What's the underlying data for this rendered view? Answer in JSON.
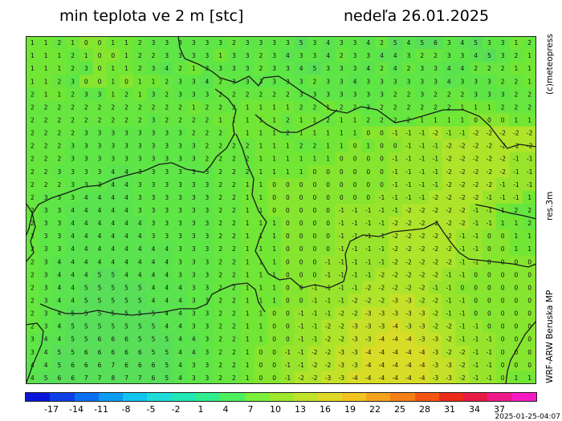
{
  "title": {
    "variable": "min teplota ve 2 m [stc]",
    "date": "nedeľa 26.01.2025"
  },
  "side_labels": {
    "brand": "(c)meteopress",
    "resolution": "res.3m",
    "model": "WRF-ARW Beruska MP"
  },
  "timestamp": "2025-01-25-04:07",
  "map": {
    "grid_cols": 38,
    "grid_rows": 27,
    "cell_values": [
      [
        1,
        1,
        2,
        1,
        0,
        0,
        1,
        1,
        2,
        3,
        3,
        3,
        3,
        3,
        3,
        2,
        3,
        3,
        3,
        3,
        5,
        3,
        4,
        3,
        3,
        4,
        2,
        5,
        4,
        5,
        6,
        3,
        4,
        5,
        3,
        3,
        1,
        2
      ],
      [
        1,
        1,
        1,
        2,
        1,
        0,
        0,
        1,
        2,
        2,
        3,
        3,
        3,
        3,
        1,
        3,
        3,
        2,
        3,
        4,
        3,
        3,
        4,
        2,
        3,
        3,
        4,
        4,
        3,
        2,
        2,
        3,
        3,
        4,
        5,
        3,
        2,
        1
      ],
      [
        1,
        1,
        1,
        2,
        3,
        0,
        1,
        1,
        2,
        3,
        4,
        2,
        1,
        3,
        3,
        3,
        3,
        2,
        3,
        3,
        4,
        5,
        3,
        3,
        3,
        4,
        2,
        4,
        2,
        3,
        3,
        4,
        4,
        2,
        2,
        2,
        1,
        1
      ],
      [
        1,
        1,
        2,
        3,
        0,
        0,
        1,
        0,
        1,
        1,
        2,
        3,
        3,
        4,
        2,
        3,
        3,
        3,
        3,
        3,
        3,
        2,
        3,
        3,
        4,
        3,
        3,
        3,
        3,
        3,
        3,
        4,
        3,
        3,
        3,
        2,
        2,
        1
      ],
      [
        2,
        1,
        1,
        2,
        3,
        3,
        1,
        2,
        1,
        3,
        2,
        3,
        3,
        3,
        2,
        2,
        2,
        2,
        2,
        2,
        3,
        3,
        3,
        3,
        3,
        3,
        3,
        2,
        2,
        3,
        2,
        2,
        2,
        3,
        3,
        3,
        2,
        2
      ],
      [
        2,
        2,
        2,
        2,
        2,
        2,
        2,
        2,
        2,
        2,
        2,
        2,
        1,
        2,
        2,
        2,
        1,
        1,
        1,
        1,
        2,
        2,
        1,
        2,
        2,
        3,
        2,
        2,
        2,
        2,
        2,
        2,
        1,
        1,
        1,
        2,
        2,
        2
      ],
      [
        2,
        2,
        2,
        2,
        2,
        2,
        2,
        2,
        2,
        3,
        2,
        2,
        2,
        2,
        1,
        1,
        1,
        1,
        1,
        2,
        1,
        1,
        2,
        1,
        1,
        2,
        2,
        2,
        2,
        1,
        1,
        1,
        1,
        0,
        0,
        0,
        1,
        1
      ],
      [
        2,
        2,
        2,
        2,
        3,
        3,
        3,
        3,
        3,
        3,
        3,
        3,
        2,
        2,
        2,
        1,
        1,
        1,
        1,
        2,
        1,
        1,
        1,
        1,
        1,
        0,
        0,
        -1,
        -1,
        -1,
        -2,
        -1,
        -1,
        -2,
        -2,
        -2,
        -2,
        -2
      ],
      [
        2,
        2,
        2,
        3,
        3,
        3,
        3,
        3,
        3,
        3,
        3,
        3,
        3,
        2,
        2,
        2,
        2,
        1,
        1,
        1,
        2,
        2,
        1,
        1,
        0,
        1,
        0,
        0,
        -1,
        -1,
        -1,
        -2,
        -2,
        -2,
        -2,
        -2,
        -2,
        -2
      ],
      [
        2,
        2,
        2,
        3,
        3,
        3,
        3,
        3,
        3,
        3,
        3,
        3,
        3,
        2,
        2,
        2,
        2,
        1,
        1,
        1,
        1,
        1,
        1,
        0,
        0,
        0,
        0,
        -1,
        -1,
        -1,
        -1,
        -2,
        -2,
        -2,
        -2,
        -2,
        -1,
        -1
      ],
      [
        2,
        2,
        3,
        3,
        3,
        3,
        4,
        4,
        3,
        3,
        3,
        3,
        3,
        3,
        2,
        2,
        2,
        1,
        1,
        1,
        1,
        0,
        0,
        0,
        0,
        0,
        0,
        -1,
        -1,
        -1,
        -1,
        -2,
        -2,
        -2,
        -2,
        -2,
        -1,
        -1
      ],
      [
        2,
        2,
        2,
        3,
        3,
        3,
        4,
        4,
        3,
        3,
        3,
        3,
        3,
        3,
        2,
        2,
        1,
        1,
        0,
        0,
        0,
        0,
        0,
        0,
        0,
        0,
        0,
        -1,
        -1,
        -1,
        -1,
        -2,
        -2,
        -2,
        -2,
        -1,
        -1,
        -1
      ],
      [
        2,
        3,
        3,
        3,
        4,
        4,
        4,
        4,
        3,
        3,
        3,
        3,
        3,
        3,
        2,
        2,
        1,
        1,
        0,
        0,
        0,
        0,
        0,
        0,
        0,
        0,
        -1,
        -1,
        -1,
        -1,
        -2,
        -2,
        -2,
        -2,
        -1,
        -1,
        -1,
        1
      ],
      [
        2,
        3,
        3,
        4,
        4,
        4,
        4,
        4,
        3,
        3,
        3,
        3,
        3,
        3,
        2,
        2,
        1,
        1,
        0,
        0,
        0,
        0,
        0,
        -1,
        -1,
        -1,
        -1,
        -1,
        -2,
        -2,
        -2,
        -2,
        -2,
        -1,
        -1,
        1,
        2,
        2
      ],
      [
        2,
        3,
        3,
        4,
        4,
        4,
        4,
        4,
        4,
        3,
        3,
        3,
        3,
        3,
        2,
        2,
        1,
        1,
        1,
        0,
        0,
        0,
        0,
        -1,
        -1,
        -1,
        -1,
        -2,
        -2,
        -2,
        -2,
        -2,
        -2,
        -1,
        -1,
        1,
        1,
        2
      ],
      [
        2,
        3,
        3,
        4,
        4,
        4,
        4,
        4,
        4,
        3,
        3,
        3,
        3,
        3,
        2,
        2,
        1,
        1,
        1,
        0,
        0,
        0,
        0,
        -1,
        -1,
        -1,
        -1,
        -2,
        -2,
        -2,
        -2,
        -2,
        -1,
        -1,
        0,
        0,
        1,
        1
      ],
      [
        2,
        3,
        3,
        4,
        4,
        4,
        4,
        4,
        4,
        4,
        4,
        3,
        3,
        3,
        2,
        2,
        1,
        1,
        1,
        0,
        0,
        0,
        0,
        -1,
        -1,
        -1,
        -1,
        -2,
        -2,
        -2,
        -2,
        -2,
        -1,
        -1,
        0,
        0,
        1,
        1
      ],
      [
        2,
        3,
        4,
        4,
        4,
        4,
        4,
        4,
        4,
        4,
        4,
        3,
        3,
        3,
        2,
        2,
        1,
        1,
        1,
        0,
        0,
        0,
        -1,
        -1,
        -1,
        -1,
        -1,
        -2,
        -2,
        -2,
        -2,
        -2,
        -1,
        -1,
        0,
        0,
        0,
        0
      ],
      [
        2,
        3,
        4,
        4,
        4,
        5,
        5,
        4,
        4,
        4,
        4,
        3,
        3,
        3,
        2,
        2,
        1,
        1,
        1,
        0,
        0,
        0,
        -1,
        -1,
        -1,
        -1,
        -2,
        -2,
        -2,
        -2,
        -2,
        -1,
        -1,
        0,
        0,
        0,
        0,
        0
      ],
      [
        2,
        3,
        4,
        4,
        5,
        5,
        5,
        5,
        5,
        4,
        4,
        4,
        3,
        3,
        2,
        2,
        1,
        1,
        1,
        0,
        0,
        -1,
        -1,
        -1,
        -1,
        -2,
        -2,
        -2,
        -2,
        -2,
        -1,
        -1,
        0,
        0,
        0,
        0,
        0,
        0
      ],
      [
        2,
        3,
        4,
        4,
        5,
        5,
        5,
        5,
        5,
        4,
        4,
        4,
        3,
        3,
        2,
        2,
        1,
        1,
        1,
        0,
        0,
        -1,
        -1,
        -1,
        -2,
        -2,
        -2,
        -3,
        -3,
        -2,
        -2,
        -1,
        -1,
        0,
        0,
        0,
        0,
        0
      ],
      [
        2,
        3,
        4,
        5,
        5,
        5,
        5,
        5,
        5,
        5,
        4,
        4,
        3,
        3,
        2,
        2,
        1,
        1,
        0,
        0,
        -1,
        -1,
        -1,
        -2,
        -2,
        -3,
        -3,
        -3,
        -3,
        -3,
        -2,
        -1,
        -1,
        0,
        0,
        0,
        0,
        0
      ],
      [
        2,
        3,
        4,
        5,
        5,
        5,
        5,
        5,
        5,
        5,
        4,
        4,
        3,
        3,
        2,
        2,
        1,
        1,
        0,
        0,
        -1,
        -1,
        -2,
        -2,
        -3,
        -3,
        -3,
        -4,
        -3,
        -3,
        -2,
        -2,
        -1,
        -1,
        0,
        0,
        0,
        0
      ],
      [
        3,
        4,
        4,
        5,
        5,
        6,
        6,
        6,
        5,
        5,
        5,
        4,
        4,
        3,
        2,
        2,
        1,
        1,
        0,
        0,
        -1,
        -1,
        -2,
        -2,
        -3,
        -3,
        -4,
        -4,
        -4,
        -3,
        -3,
        -2,
        -1,
        -1,
        -1,
        0,
        0,
        0
      ],
      [
        3,
        4,
        5,
        5,
        6,
        6,
        6,
        6,
        6,
        5,
        5,
        4,
        4,
        3,
        2,
        2,
        1,
        0,
        0,
        -1,
        -1,
        -2,
        -2,
        -3,
        -3,
        -4,
        -4,
        -4,
        -4,
        -4,
        -3,
        -2,
        -2,
        -1,
        -1,
        0,
        0,
        0
      ],
      [
        4,
        4,
        5,
        6,
        6,
        6,
        7,
        6,
        6,
        6,
        5,
        4,
        3,
        3,
        2,
        2,
        1,
        0,
        0,
        -1,
        -1,
        -2,
        -2,
        -3,
        -3,
        -4,
        -4,
        -4,
        -4,
        -4,
        -3,
        -3,
        -2,
        -1,
        -1,
        0,
        0,
        0
      ],
      [
        4,
        5,
        6,
        6,
        7,
        7,
        8,
        7,
        7,
        6,
        5,
        4,
        3,
        3,
        2,
        2,
        1,
        0,
        0,
        -1,
        -2,
        -2,
        -3,
        -3,
        -4,
        -4,
        -4,
        -4,
        -4,
        -4,
        -3,
        -3,
        -2,
        -1,
        -1,
        0,
        1,
        1
      ]
    ]
  },
  "colorbar": {
    "colors": [
      "#0a14d8",
      "#0c3fe6",
      "#0a6ef0",
      "#0b9bf2",
      "#12c4f0",
      "#1bdcd8",
      "#22e6b4",
      "#2eed8c",
      "#4cf05c",
      "#7af03a",
      "#9ee82c",
      "#bfe22a",
      "#dfd826",
      "#f1c320",
      "#f5a31c",
      "#f57f16",
      "#f25612",
      "#ec2b1a",
      "#e81a46",
      "#ee1a88",
      "#f61ac4"
    ],
    "tick_labels": [
      "-17",
      "-14",
      "-11",
      "-8",
      "-5",
      "-2",
      "1",
      "4",
      "7",
      "10",
      "13",
      "16",
      "19",
      "22",
      "25",
      "28",
      "31",
      "34",
      "37"
    ]
  }
}
